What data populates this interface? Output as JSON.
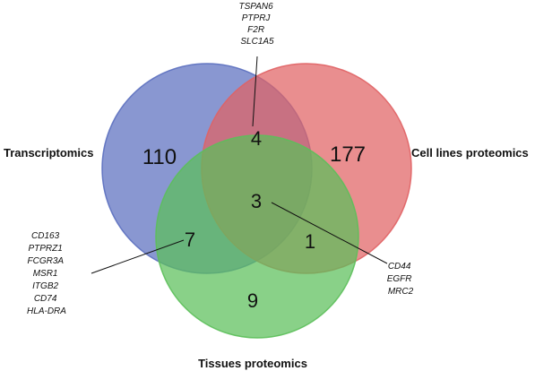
{
  "sets": {
    "transcriptomics": {
      "label": "Transcriptomics",
      "color": "#5b6fbf"
    },
    "cell_lines": {
      "label": "Cell lines proteomics",
      "color": "#e06264"
    },
    "tissues": {
      "label": "Tissues proteomics",
      "color": "#5cbf5a"
    }
  },
  "counts": {
    "transcriptomics_only": "110",
    "cell_lines_only": "177",
    "tissues_only": "9",
    "transcriptomics_cell_lines": "4",
    "transcriptomics_tissues": "7",
    "cell_lines_tissues": "1",
    "all_three": "3"
  },
  "gene_lists": {
    "transcriptomics_cell_lines": [
      "TSPAN6",
      "PTPRJ",
      "F2R",
      "SLC1A5"
    ],
    "transcriptomics_tissues": [
      "CD163",
      "PTPRZ1",
      "FCGR3A",
      "MSR1",
      "ITGB2",
      "CD74",
      "HLA-DRA"
    ],
    "all_three": [
      "CD44",
      "EGFR",
      "MRC2"
    ]
  }
}
